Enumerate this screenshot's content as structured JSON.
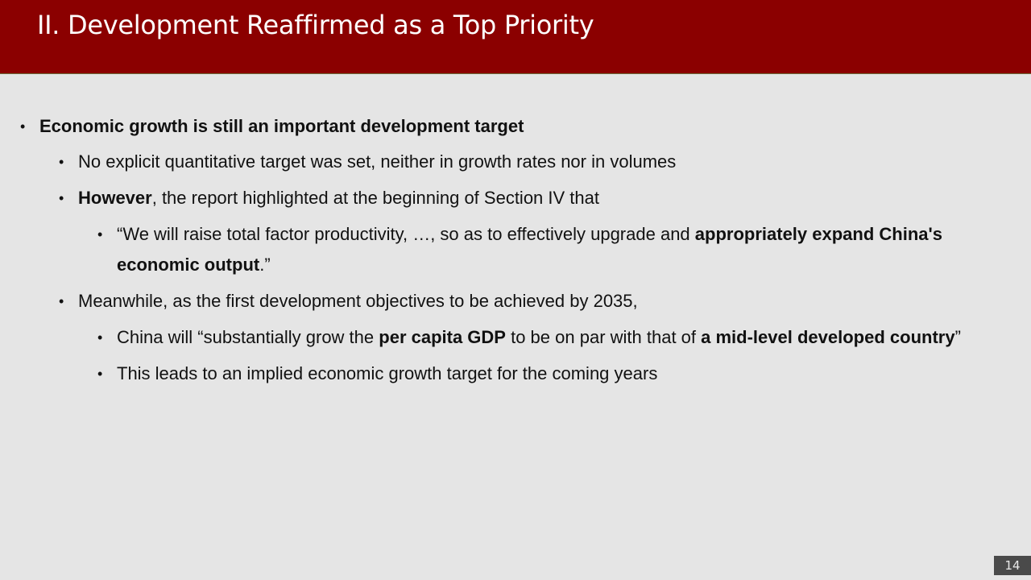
{
  "slide": {
    "title": "II. Development Reaffirmed as a Top Priority",
    "page_number": "14"
  },
  "bullets": [
    {
      "level": 1,
      "segments": [
        {
          "bold": true,
          "text": "Economic growth is still an important development target"
        }
      ]
    },
    {
      "level": 2,
      "segments": [
        {
          "bold": false,
          "text": "No explicit quantitative target was set, neither in growth rates nor in volumes"
        }
      ]
    },
    {
      "level": 2,
      "segments": [
        {
          "bold": true,
          "text": "However"
        },
        {
          "bold": false,
          "text": ", the report highlighted at the beginning of Section IV that"
        }
      ]
    },
    {
      "level": 3,
      "segments": [
        {
          "bold": false,
          "text": "“We will raise total factor productivity, …, so as to effectively upgrade and "
        },
        {
          "bold": true,
          "text": "appropriately expand China's economic output"
        },
        {
          "bold": false,
          "text": ".”"
        }
      ]
    },
    {
      "level": 2,
      "segments": [
        {
          "bold": false,
          "text": "Meanwhile, as the first development objectives to be achieved by 2035,"
        }
      ]
    },
    {
      "level": 3,
      "segments": [
        {
          "bold": false,
          "text": "China will “substantially grow the "
        },
        {
          "bold": true,
          "text": "per capita GDP"
        },
        {
          "bold": false,
          "text": " to be on par with that of "
        },
        {
          "bold": true,
          "text": "a mid-level developed country"
        },
        {
          "bold": false,
          "text": "”"
        }
      ]
    },
    {
      "level": 3,
      "segments": [
        {
          "bold": false,
          "text": "This leads to an implied economic growth target for the coming years"
        }
      ]
    }
  ]
}
